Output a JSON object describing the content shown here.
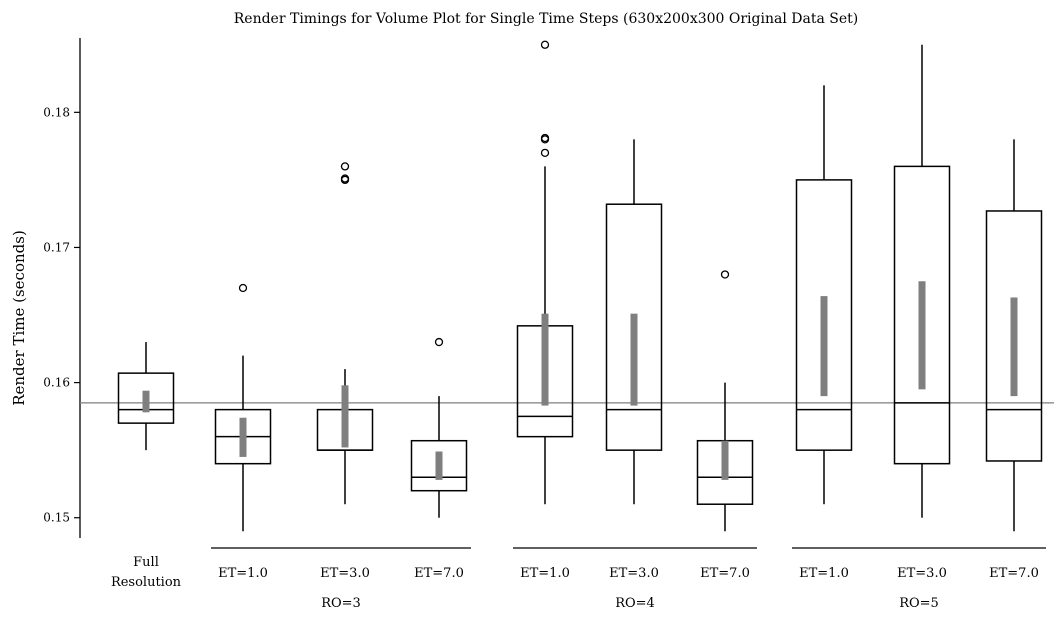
{
  "chart_data": {
    "type": "box",
    "title": "Render Timings for Volume Plot for Single Time Steps (630x200x300 Original Data Set)",
    "ylabel": "Render Time (seconds)",
    "xlabel": "",
    "ylim": [
      0.1485,
      0.1855
    ],
    "yticks": [
      "0.15",
      "0.16",
      "0.17",
      "0.18"
    ],
    "yticks_values": [
      0.15,
      0.16,
      0.17,
      0.18
    ],
    "reference_line": 0.1585,
    "groups": [
      {
        "label": "",
        "underline": false,
        "categories": [
          "Full Resolution"
        ]
      },
      {
        "label": "RO=3",
        "underline": true,
        "categories": [
          "ET=1.0",
          "ET=3.0",
          "ET=7.0"
        ]
      },
      {
        "label": "RO=4",
        "underline": true,
        "categories": [
          "ET=1.0",
          "ET=3.0",
          "ET=7.0"
        ]
      },
      {
        "label": "RO=5",
        "underline": true,
        "categories": [
          "ET=1.0",
          "ET=3.0",
          "ET=7.0"
        ]
      }
    ],
    "first_category_lines": [
      "Full",
      "Resolution"
    ],
    "boxes": [
      {
        "group": 0,
        "category": "Full Resolution",
        "whisker_low": 0.155,
        "q1": 0.157,
        "median": 0.158,
        "q3": 0.1607,
        "whisker_high": 0.163,
        "ci": [
          0.1578,
          0.1594
        ],
        "outliers": []
      },
      {
        "group": 1,
        "category": "ET=1.0",
        "whisker_low": 0.149,
        "q1": 0.154,
        "median": 0.156,
        "q3": 0.158,
        "whisker_high": 0.162,
        "ci": [
          0.1545,
          0.1574
        ],
        "outliers": [
          0.167
        ]
      },
      {
        "group": 1,
        "category": "ET=3.0",
        "whisker_low": 0.151,
        "q1": 0.155,
        "median": 0.155,
        "q3": 0.158,
        "whisker_high": 0.161,
        "ci": [
          0.1552,
          0.1598
        ],
        "outliers": [
          0.175,
          0.1751,
          0.176
        ]
      },
      {
        "group": 1,
        "category": "ET=7.0",
        "whisker_low": 0.15,
        "q1": 0.152,
        "median": 0.153,
        "q3": 0.1557,
        "whisker_high": 0.159,
        "ci": [
          0.1528,
          0.1549
        ],
        "outliers": [
          0.163
        ]
      },
      {
        "group": 2,
        "category": "ET=1.0",
        "whisker_low": 0.151,
        "q1": 0.156,
        "median": 0.1575,
        "q3": 0.1642,
        "whisker_high": 0.176,
        "ci": [
          0.1583,
          0.1651
        ],
        "outliers": [
          0.177,
          0.178,
          0.1781,
          0.185
        ]
      },
      {
        "group": 2,
        "category": "ET=3.0",
        "whisker_low": 0.151,
        "q1": 0.155,
        "median": 0.158,
        "q3": 0.1732,
        "whisker_high": 0.178,
        "ci": [
          0.1583,
          0.1651
        ],
        "outliers": []
      },
      {
        "group": 2,
        "category": "ET=7.0",
        "whisker_low": 0.149,
        "q1": 0.151,
        "median": 0.153,
        "q3": 0.1557,
        "whisker_high": 0.16,
        "ci": [
          0.1528,
          0.1557
        ],
        "outliers": [
          0.168
        ]
      },
      {
        "group": 3,
        "category": "ET=1.0",
        "whisker_low": 0.151,
        "q1": 0.155,
        "median": 0.158,
        "q3": 0.175,
        "whisker_high": 0.182,
        "ci": [
          0.159,
          0.1664
        ],
        "outliers": []
      },
      {
        "group": 3,
        "category": "ET=3.0",
        "whisker_low": 0.15,
        "q1": 0.154,
        "median": 0.1585,
        "q3": 0.176,
        "whisker_high": 0.185,
        "ci": [
          0.1595,
          0.1675
        ],
        "outliers": []
      },
      {
        "group": 3,
        "category": "ET=7.0",
        "whisker_low": 0.149,
        "q1": 0.1542,
        "median": 0.158,
        "q3": 0.1727,
        "whisker_high": 0.178,
        "ci": [
          0.159,
          0.1663
        ],
        "outliers": []
      }
    ],
    "colors": {
      "box": "#000000",
      "ci_bar": "#7f7f7f",
      "reference_line": "#7f7f7f",
      "outlier": "#000000"
    },
    "grid": false,
    "legend": "none"
  }
}
